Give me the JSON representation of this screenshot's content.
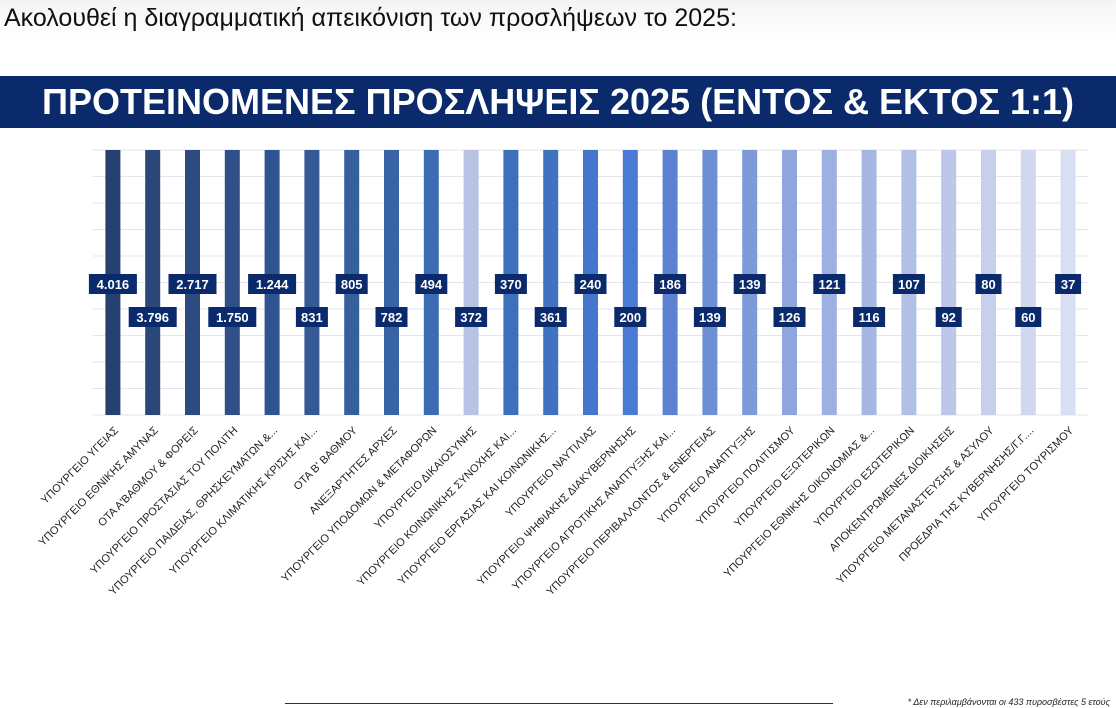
{
  "intro_text": "Ακολουθεί η διαγραμματική απεικόνιση των προσλήψεων το 2025:",
  "footnote": "* Δεν περιλαμβάνονται οι 433 πυροσβέστες 5 ετούς",
  "chart_data": {
    "type": "bar",
    "title": "ΠΡΟΤΕΙΝΟΜΕΝΕΣ ΠΡΟΣΛΗΨΕΙΣ 2025 (ΕΝΤΟΣ & ΕΚΤΟΣ 1:1)",
    "xlabel": "",
    "ylabel": "",
    "grid": true,
    "categories": [
      "ΥΠΟΥΡΓΕΙΟ ΥΓΕΙΑΣ",
      "ΥΠΟΥΡΓΕΙΟ ΕΘΝΙΚΗΣ ΑΜΥΝΑΣ",
      "ΟΤΑ Α'ΒΑΘΜΟΥ & ΦΟΡΕΙΣ",
      "ΥΠΟΥΡΓΕΙΟ ΠΡΟΣΤΑΣΙΑΣ ΤΟΥ ΠΟΛΙΤΗ",
      "ΥΠΟΥΡΓΕΙΟ ΠΑΙΔΕΙΑΣ, ΘΡΗΣΚΕΥΜΑΤΩΝ &...",
      "ΥΠΟΥΡΓΕΙΟ ΚΛΙΜΑΤΙΚΗΣ ΚΡΙΣΗΣ ΚΑΙ...",
      "ΟΤΑ Β' ΒΑΘΜΟΥ",
      "ΑΝΕΞΑΡΤΗΤΕΣ ΑΡΧΕΣ",
      "ΥΠΟΥΡΓΕΙΟ ΥΠΟΔΟΜΩΝ & ΜΕΤΑΦΟΡΩΝ",
      "ΥΠΟΥΡΓΕΙΟ ΔΙΚΑΙΟΣΥΝΗΣ",
      "ΥΠΟΥΡΓΕΙΟ ΚΟΙΝΩΝΙΚΗΣ ΣΥΝΟΧΗΣ ΚΑΙ...",
      "ΥΠΟΥΡΓΕΙΟ ΕΡΓΑΣΙΑΣ ΚΑΙ ΚΟΙΝΩΝΙΚΗΣ...",
      "ΥΠΟΥΡΓΕΙΟ ΝΑΥΤΙΛΙΑΣ",
      "ΥΠΟΥΡΓΕΙΟ ΨΗΦΙΑΚΗΣ ΔΙΑΚΥΒΕΡΝΗΣΗΣ",
      "ΥΠΟΥΡΓΕΙΟ ΑΓΡΟΤΙΚΗΣ ΑΝΑΠΤΥΞΗΣ ΚΑΙ...",
      "ΥΠΟΥΡΓΕΙΟ ΠΕΡΙΒΑΛΛΟΝΤΟΣ & ΕΝΕΡΓΕΙΑΣ",
      "ΥΠΟΥΡΓΕΙΟ ΑΝΑΠΤΥΞΗΣ",
      "ΥΠΟΥΡΓΕΙΟ ΠΟΛΙΤΙΣΜΟΥ",
      "ΥΠΟΥΡΓΕΙΟ ΕΞΩΤΕΡΙΚΩΝ",
      "ΥΠΟΥΡΓΕΙΟ ΕΘΝΙΚΗΣ ΟΙΚΟΝΟΜΙΑΣ &...",
      "ΥΠΟΥΡΓΕΙΟ ΕΣΩΤΕΡΙΚΩΝ",
      "ΑΠΟΚΕΝΤΡΩΜΕΝΕΣ ΔΙΟΙΚΗΣΕΙΣ",
      "ΥΠΟΥΡΓΕΙΟ ΜΕΤΑΝΑΣΤΕΥΣΗΣ & ΑΣΥΛΟΥ",
      "ΠΡΟΕΔΡΙΑ ΤΗΣ ΚΥΒΕΡΝΗΣΗΣ/Γ.Γ....",
      "ΥΠΟΥΡΓΕΙΟ ΤΟΥΡΙΣΜΟΥ"
    ],
    "values": [
      4016,
      3796,
      2717,
      1750,
      1244,
      831,
      805,
      782,
      494,
      372,
      370,
      361,
      240,
      200,
      186,
      139,
      139,
      126,
      121,
      116,
      107,
      92,
      80,
      60,
      37
    ],
    "value_labels": [
      "4.016",
      "3.796",
      "2.717",
      "1.750",
      "1.244",
      "831",
      "805",
      "782",
      "494",
      "372",
      "370",
      "361",
      "240",
      "200",
      "186",
      "139",
      "139",
      "126",
      "121",
      "116",
      "107",
      "92",
      "80",
      "60",
      "37"
    ],
    "bar_colors": [
      "#26406f",
      "#2b4678",
      "#2d4b80",
      "#2e4f87",
      "#30548f",
      "#345a96",
      "#36609c",
      "#3864a5",
      "#3b6cb4",
      "#b8c2e2",
      "#3d6fbb",
      "#3f73c1",
      "#4477cc",
      "#4a7ad4",
      "#5c82d1",
      "#6f8fd5",
      "#7e9ad9",
      "#8fa6dd",
      "#9db0e1",
      "#a7b7e3",
      "#b2c0e6",
      "#bcc7e9",
      "#c6d0ec",
      "#d0d8ef",
      "#d9dff2"
    ],
    "label_box_color": "#0a2a6b"
  }
}
